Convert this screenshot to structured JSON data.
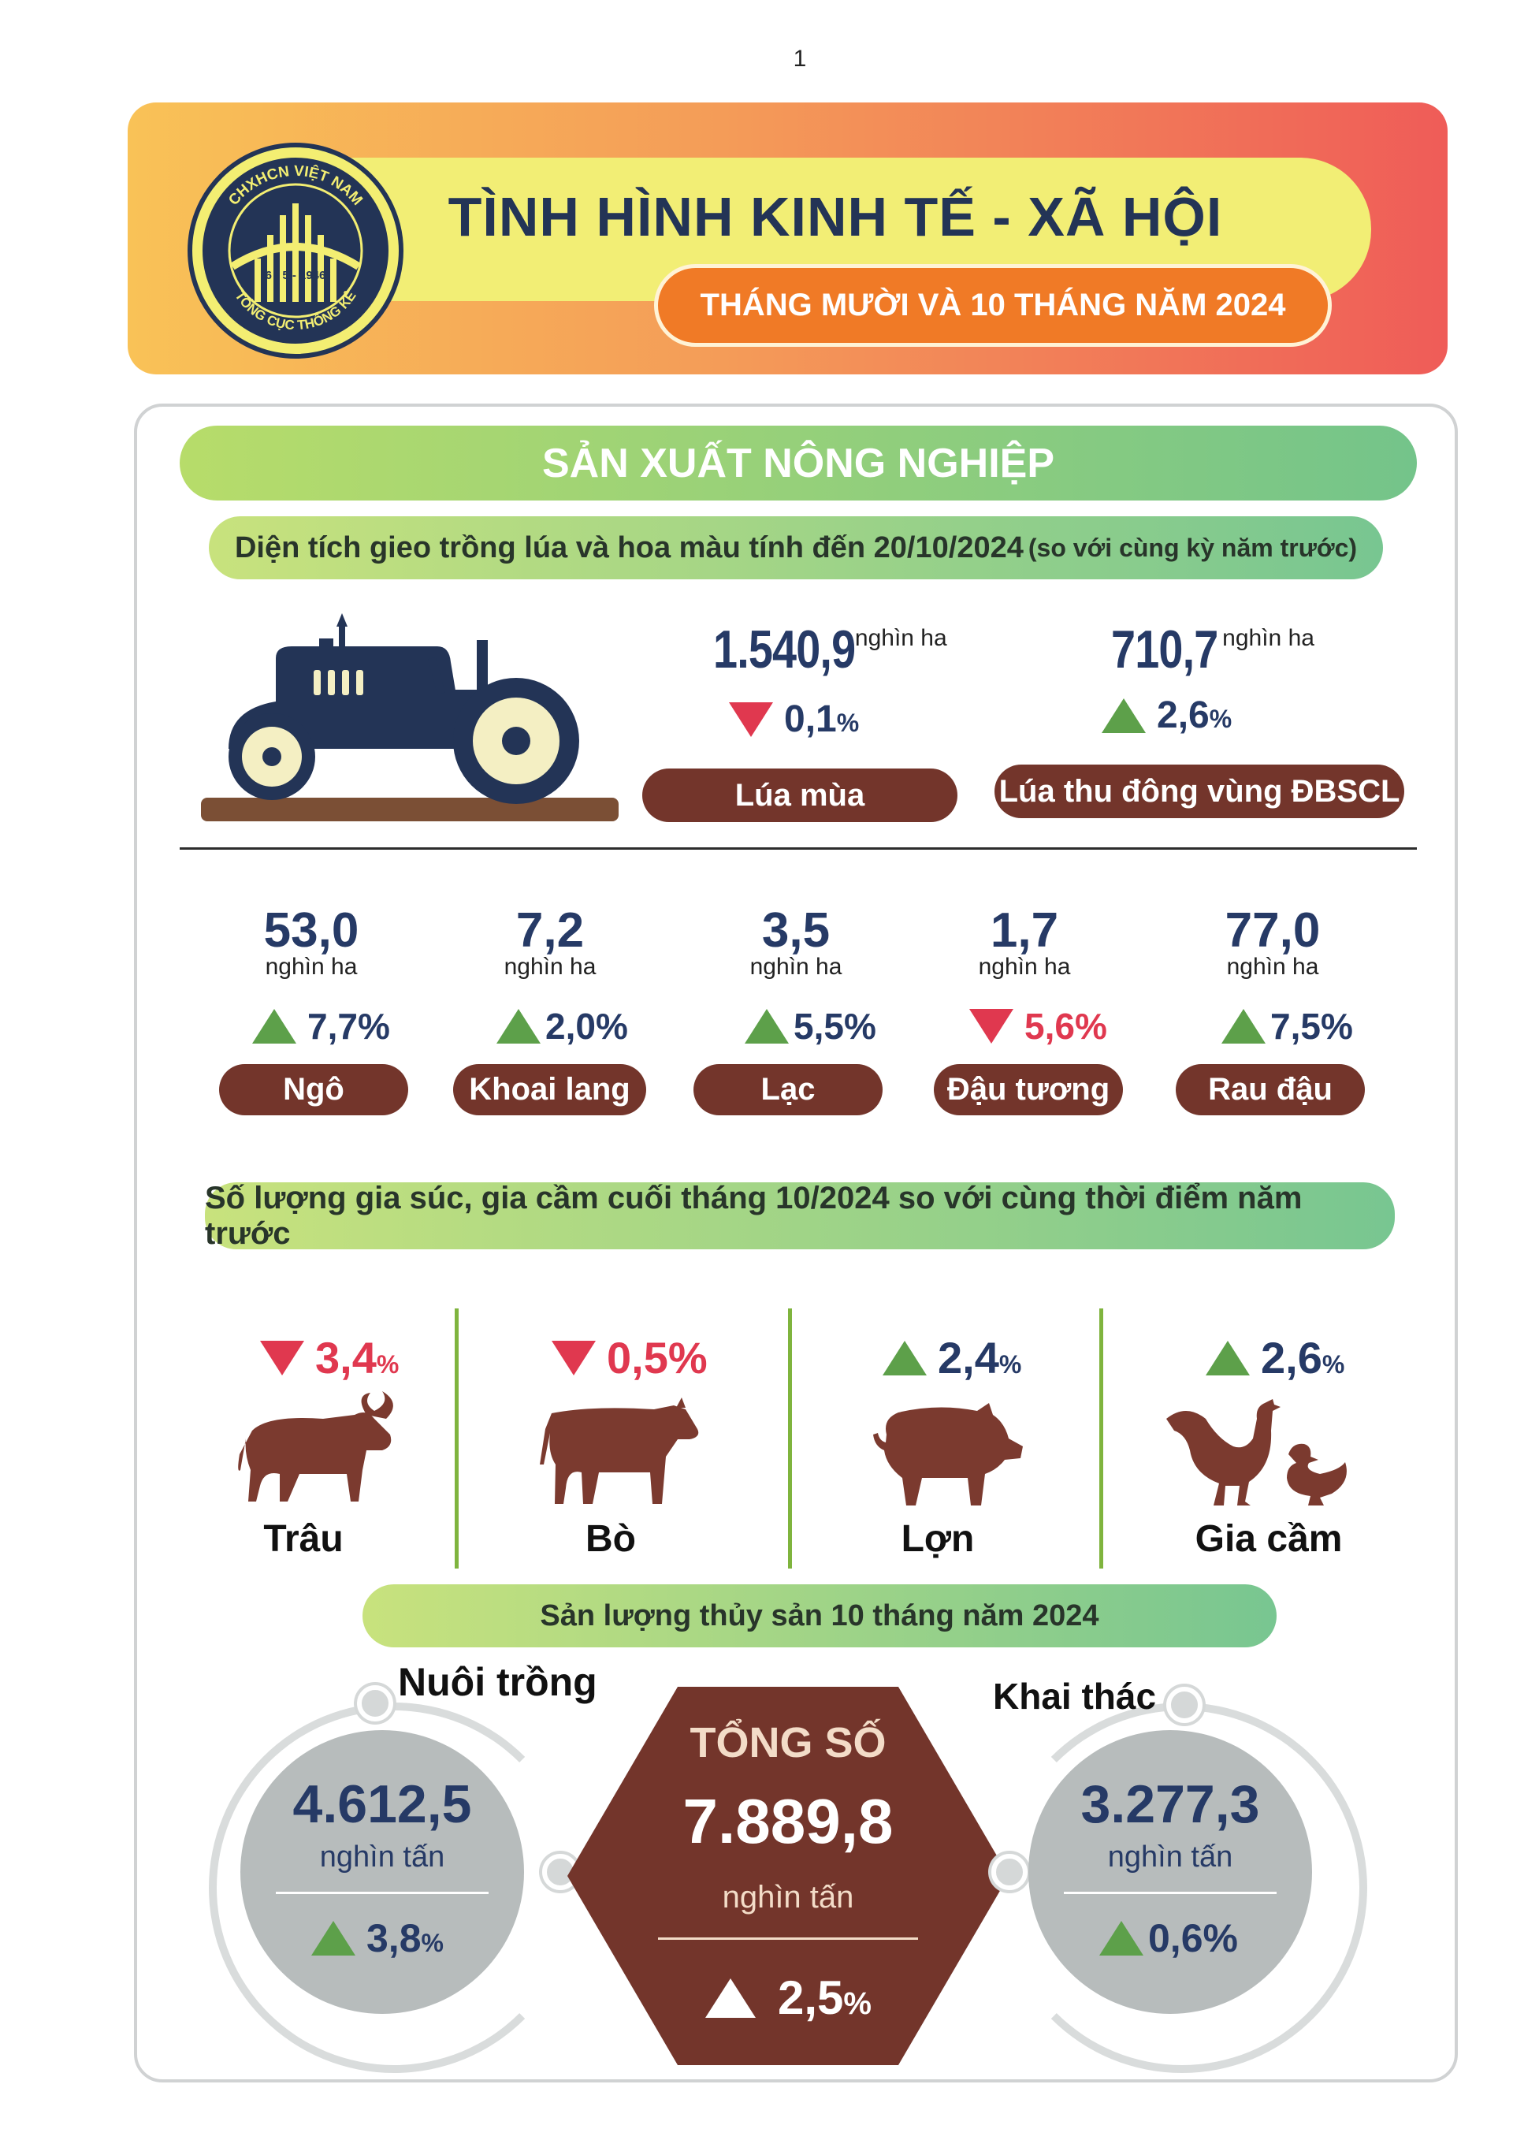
{
  "page_number": "1",
  "header": {
    "title": "TÌNH HÌNH KINH TẾ - XÃ HỘI",
    "subtitle": "THÁNG MƯỜI VÀ 10 THÁNG NĂM 2024",
    "logo_text_top": "CHXHCN VIỆT NAM",
    "logo_date": "6 - 5 - 1946",
    "logo_text_bottom": "TỔNG CỤC THỐNG KÊ"
  },
  "agriculture": {
    "section_title": "SẢN XUẤT NÔNG NGHIỆP",
    "area_heading": "Diện tích gieo trồng lúa và hoa màu tính đến 20/10/2024",
    "area_heading_note": "(so với cùng kỳ năm trước)",
    "rice": [
      {
        "value": "1.540,9",
        "unit": "nghìn ha",
        "direction": "down",
        "change": "0,1",
        "pct": "%",
        "label": "Lúa mùa"
      },
      {
        "value": "710,7",
        "unit": "nghìn ha",
        "direction": "up",
        "change": "2,6",
        "pct": "%",
        "label": "Lúa thu đông vùng ĐBSCL"
      }
    ],
    "crops": [
      {
        "value": "53,0",
        "unit": "nghìn ha",
        "direction": "up",
        "change": "7,7%",
        "label": "Ngô"
      },
      {
        "value": "7,2",
        "unit": "nghìn ha",
        "direction": "up",
        "change": "2,0%",
        "label": "Khoai lang"
      },
      {
        "value": "3,5",
        "unit": "nghìn ha",
        "direction": "up",
        "change": "5,5%",
        "label": "Lạc"
      },
      {
        "value": "1,7",
        "unit": "nghìn ha",
        "direction": "down",
        "change": "5,6%",
        "label": "Đậu tương"
      },
      {
        "value": "77,0",
        "unit": "nghìn ha",
        "direction": "up",
        "change": "7,5%",
        "label": "Rau đậu"
      }
    ]
  },
  "livestock": {
    "heading": "Số lượng gia súc, gia cầm cuối tháng 10/2024 so với cùng thời điểm năm trước",
    "items": [
      {
        "direction": "down",
        "change": "3,4",
        "pct": "%",
        "label": "Trâu",
        "icon": "buffalo-icon"
      },
      {
        "direction": "down",
        "change": "0,5%",
        "pct": "",
        "label": "Bò",
        "icon": "cow-icon"
      },
      {
        "direction": "up",
        "change": "2,4",
        "pct": "%",
        "label": "Lợn",
        "icon": "pig-icon"
      },
      {
        "direction": "up",
        "change": "2,6",
        "pct": "%",
        "label": "Gia cầm",
        "icon": "poultry-icon"
      }
    ]
  },
  "fishery": {
    "heading": "Sản lượng thủy sản 10 tháng năm 2024",
    "aquaculture": {
      "title": "Nuôi trồng",
      "value": "4.612,5",
      "unit": "nghìn tấn",
      "change": "3,8",
      "pct": "%"
    },
    "total": {
      "title": "TỔNG SỐ",
      "value": "7.889,8",
      "unit": "nghìn tấn",
      "change": "2,5",
      "pct": "%"
    },
    "catch": {
      "title": "Khai thác",
      "value": "3.277,3",
      "unit": "nghìn tấn",
      "change": "0,6%"
    }
  },
  "colors": {
    "navy": "#263a66",
    "brown": "#73352b",
    "up_green": "#5da04a",
    "down_red": "#e0384f",
    "animal_brown": "#7b3a2f"
  }
}
